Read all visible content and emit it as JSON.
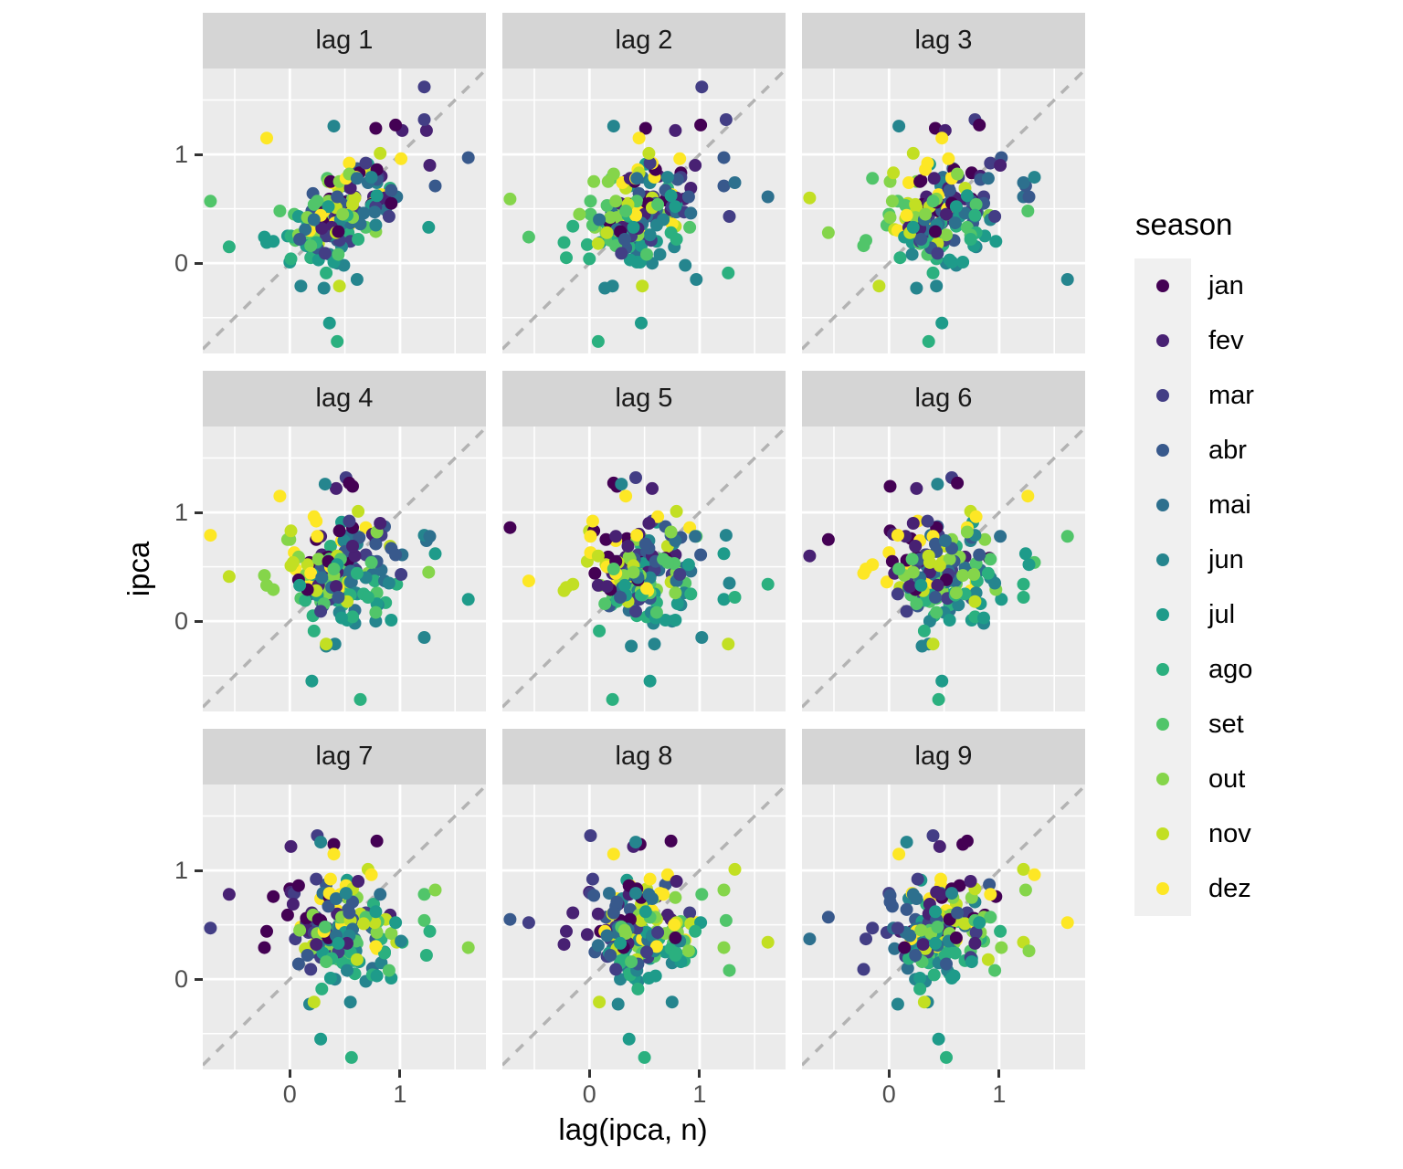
{
  "axes": {
    "x_title": "lag(ipca, n)",
    "y_title": "ipca",
    "x_tick_labels": [
      "0",
      "1"
    ],
    "y_tick_labels": [
      "1",
      "0"
    ],
    "x_tick_values": [
      0,
      1
    ],
    "y_tick_values": [
      1,
      0
    ]
  },
  "facets": [
    {
      "label": "lag 1",
      "lag": 1
    },
    {
      "label": "lag 2",
      "lag": 2
    },
    {
      "label": "lag 3",
      "lag": 3
    },
    {
      "label": "lag 4",
      "lag": 4
    },
    {
      "label": "lag 5",
      "lag": 5
    },
    {
      "label": "lag 6",
      "lag": 6
    },
    {
      "label": "lag 7",
      "lag": 7
    },
    {
      "label": "lag 8",
      "lag": 8
    },
    {
      "label": "lag 9",
      "lag": 9
    }
  ],
  "legend": {
    "title": "season",
    "items": [
      {
        "label": "jan",
        "color": "#440154"
      },
      {
        "label": "fev",
        "color": "#482173"
      },
      {
        "label": "mar",
        "color": "#433E85"
      },
      {
        "label": "abr",
        "color": "#38598C"
      },
      {
        "label": "mai",
        "color": "#2D708E"
      },
      {
        "label": "jun",
        "color": "#25858E"
      },
      {
        "label": "jul",
        "color": "#1E9B8A"
      },
      {
        "label": "ago",
        "color": "#2BB07F"
      },
      {
        "label": "set",
        "color": "#51C56A"
      },
      {
        "label": "out",
        "color": "#85D54A"
      },
      {
        "label": "nov",
        "color": "#C2DF23"
      },
      {
        "label": "dez",
        "color": "#FDE725"
      }
    ]
  },
  "style": {
    "panel_bg": "#EBEBEB",
    "strip_bg": "#D5D5D5",
    "strip_text": "#1A1A1A",
    "grid_color": "#FFFFFF",
    "tick_text": "#4D4D4D",
    "tick_mark": "#333333",
    "axis_title_color": "#000000",
    "ref_line_color": "#B3B3B3",
    "legend_key_bg": "#F0F0F0",
    "point_radius": 7
  },
  "chart_data": {
    "type": "scatter",
    "title": "",
    "xlabel": "lag(ipca, n)",
    "ylabel": "ipca",
    "x_range": [
      -0.79,
      1.78
    ],
    "y_range": [
      -0.83,
      1.79
    ],
    "x_ticks": [
      0,
      1
    ],
    "y_ticks": [
      0,
      1
    ],
    "grid": "on",
    "legend_position": "right",
    "facet_labels": [
      "lag 1",
      "lag 2",
      "lag 3",
      "lag 4",
      "lag 5",
      "lag 6",
      "lag 7",
      "lag 8",
      "lag 9"
    ],
    "reference_line": {
      "slope": 1,
      "intercept": 0,
      "style": "dashed"
    },
    "color_by": "season",
    "months": [
      "jan",
      "fev",
      "mar",
      "abr",
      "mai",
      "jun",
      "jul",
      "ago",
      "set",
      "out",
      "nov",
      "dez"
    ],
    "construction": "facet 'lag n' plots points (series[i-n], series[i]); point colored by month of observation i",
    "ipca_monthly_series": [
      1.02,
      1.22,
      1.62,
      0.97,
      0.61,
      -0.15,
      0.2,
      0.34,
      0.78,
      0.29,
      0.34,
      0.52,
      0.76,
      0.61,
      0.47,
      0.37,
      0.51,
      0.71,
      0.91,
      0.69,
      0.33,
      0.44,
      0.69,
      0.86,
      0.58,
      0.59,
      0.61,
      0.87,
      0.49,
      -0.02,
      0.25,
      0.17,
      0.35,
      0.75,
      0.55,
      0.36,
      0.59,
      0.41,
      0.43,
      0.21,
      0.1,
      -0.21,
      0.19,
      0.05,
      0.21,
      0.33,
      0.31,
      0.48,
      0.44,
      0.44,
      0.37,
      0.25,
      0.28,
      0.28,
      0.24,
      0.47,
      0.18,
      0.3,
      0.38,
      0.74,
      0.54,
      0.49,
      0.48,
      0.55,
      0.79,
      0.74,
      0.53,
      0.28,
      0.26,
      0.45,
      0.36,
      0.28,
      0.48,
      0.55,
      0.2,
      0.48,
      0.47,
      0.36,
      -0.55,
      0.15,
      0.24,
      0.28,
      0.41,
      0.37,
      0.75,
      0.78,
      0.52,
      0.57,
      0.43,
      0.0,
      0.01,
      0.04,
      0.45,
      0.75,
      0.83,
      0.63,
      0.83,
      0.8,
      0.79,
      0.77,
      0.47,
      0.15,
      0.16,
      0.37,
      0.53,
      0.43,
      0.52,
      0.5,
      0.56,
      0.45,
      0.21,
      0.64,
      0.36,
      0.08,
      0.43,
      -0.72,
      0.57,
      0.59,
      0.6,
      0.79,
      0.86,
      0.6,
      0.47,
      0.55,
      0.37,
      0.26,
      0.03,
      0.24,
      0.35,
      0.57,
      0.54,
      0.92,
      0.55,
      0.69,
      0.92,
      0.67,
      0.46,
      0.4,
      0.01,
      0.25,
      0.57,
      0.42,
      0.51,
      0.78,
      1.24,
      1.22,
      1.32,
      0.71,
      0.74,
      0.79,
      0.62,
      0.22,
      0.54,
      0.82,
      1.01,
      0.96,
      1.27,
      0.9,
      0.43,
      0.61,
      0.78,
      0.35,
      0.52,
      0.44,
      0.08,
      0.26,
      0.18,
      0.3,
      0.38,
      0.33,
      0.25,
      0.14,
      0.31,
      -0.23,
      0.24,
      0.19,
      0.16,
      0.42,
      0.28,
      0.44,
      0.29,
      0.32,
      0.09,
      0.22,
      0.4,
      1.26,
      0.33,
      -0.09,
      0.48,
      0.45,
      -0.21,
      1.15
    ]
  }
}
